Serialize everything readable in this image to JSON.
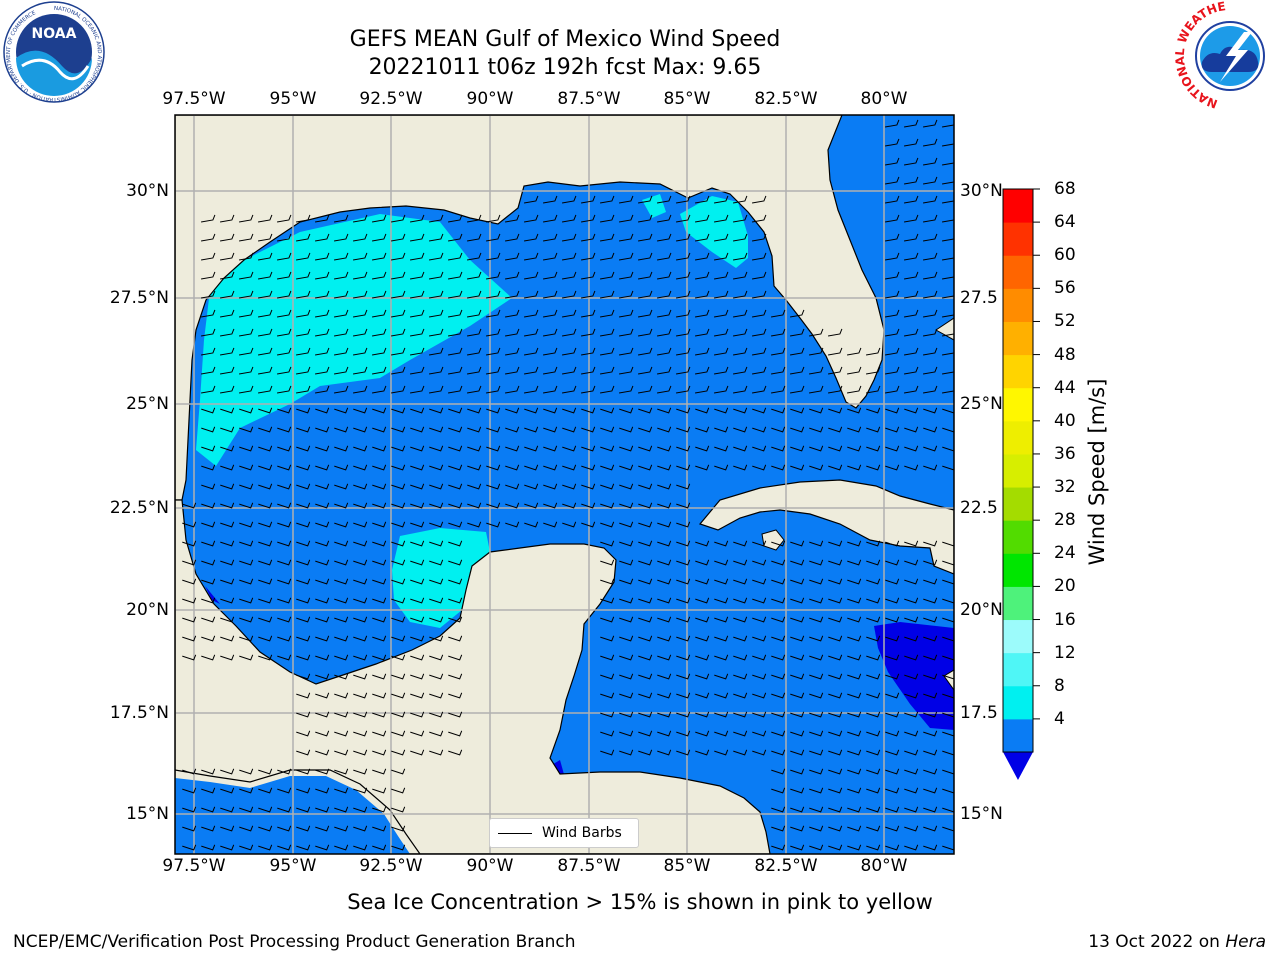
{
  "header": {
    "title_line1": "GEFS MEAN Gulf of Mexico Wind Speed",
    "title_line2": "20221011 t06z 192h fcst   Max: 9.65"
  },
  "logos": {
    "left": "NOAA",
    "left_ring_text": "NATIONAL OCEANIC AND ATMOSPHERIC ADMINISTRATION · U.S. DEPARTMENT OF COMMERCE",
    "right_ring_text": "NATIONAL WEATHER SERVICE"
  },
  "map": {
    "lon_labels": [
      "97.5°W",
      "95°W",
      "92.5°W",
      "90°W",
      "87.5°W",
      "85°W",
      "82.5°W",
      "80°W"
    ],
    "lat_labels": [
      "30°N",
      "27.5°N",
      "25°N",
      "22.5°N",
      "20°N",
      "17.5°N",
      "15°N"
    ],
    "lat_labels_right": [
      "30°N",
      "27.5",
      "25°N",
      "22.5",
      "20°N",
      "17.5",
      "15°N"
    ],
    "legend_label": "Wind Barbs",
    "colors": {
      "land": "#eeecdc",
      "wind_4_8": "#0a7cf4",
      "wind_8_12": "#00f0f0",
      "wind_lt_4": "#0000e6"
    }
  },
  "colorbar": {
    "label": "Wind Speed [m/s]",
    "ticks": [
      "68",
      "64",
      "60",
      "56",
      "52",
      "48",
      "44",
      "40",
      "36",
      "32",
      "28",
      "24",
      "20",
      "16",
      "12",
      "8",
      "4"
    ],
    "colors": [
      "#0a7cf4",
      "#00f0f0",
      "#4ff6f6",
      "#9cfbfb",
      "#4ef27b",
      "#00e600",
      "#52dc00",
      "#a4dc00",
      "#d7ee00",
      "#eeee00",
      "#fff700",
      "#ffd400",
      "#ffb000",
      "#ff8c00",
      "#ff6500",
      "#ff3200",
      "#ff0000"
    ],
    "extend_color": "#0000e6"
  },
  "footer": {
    "note": "Sea Ice Concentration > 15% is shown in pink to yellow",
    "credit_left": "NCEP/EMC/Verification Post Processing Product Generation Branch",
    "credit_date": "13 Oct 2022 on",
    "credit_machine": "Hera"
  }
}
